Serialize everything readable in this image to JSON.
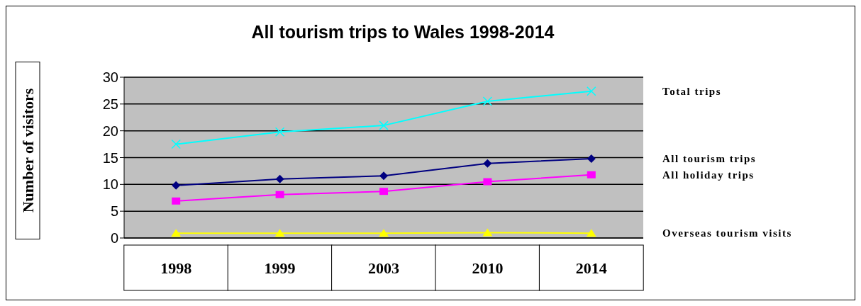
{
  "chart_data": {
    "type": "line",
    "title": "All tourism trips to Wales 1998-2014",
    "ylabel": "Number of visitors",
    "categories": [
      "1998",
      "1999",
      "2003",
      "2010",
      "2014"
    ],
    "series": [
      {
        "name": "Total trips",
        "color": "#00ffff",
        "marker": "cross",
        "values": [
          17.5,
          19.8,
          21,
          25.5,
          27.4
        ]
      },
      {
        "name": "All tourism trips",
        "color": "#000080",
        "marker": "diamond",
        "values": [
          9.8,
          11,
          11.6,
          13.9,
          14.8
        ]
      },
      {
        "name": "All holiday trips",
        "color": "#ff00ff",
        "marker": "square",
        "values": [
          6.9,
          8.1,
          8.7,
          10.5,
          11.8
        ]
      },
      {
        "name": "Overseas tourism visits",
        "color": "#ffff00",
        "marker": "triangle",
        "values": [
          0.9,
          0.9,
          0.9,
          1.0,
          0.9
        ]
      }
    ],
    "ylim": [
      0,
      30
    ],
    "yticks": [
      0,
      5,
      10,
      15,
      20,
      25,
      30
    ],
    "grid": "y",
    "legend": false
  }
}
